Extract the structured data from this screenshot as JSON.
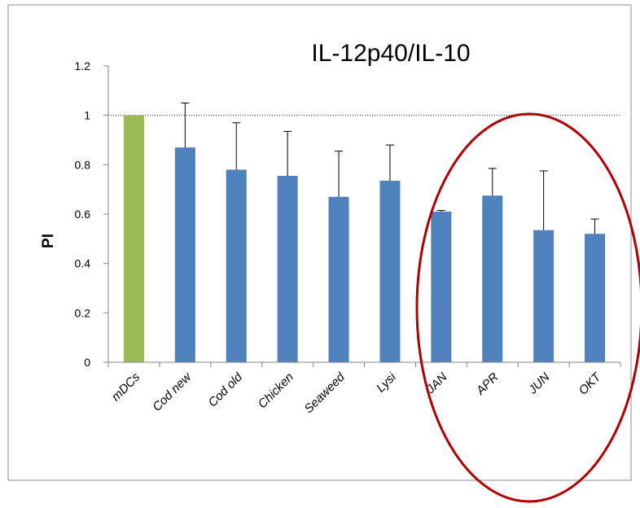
{
  "chart_data": {
    "type": "bar",
    "title": "IL-12p40/IL-10",
    "xlabel": "",
    "ylabel": "PI",
    "ylim": [
      0,
      1.2
    ],
    "yticks": [
      "0",
      "0.2",
      "0.4",
      "0.6",
      "0.8",
      "1",
      "1.2"
    ],
    "reference_line": 1,
    "grid": false,
    "categories": [
      "mDCs",
      "Cod new",
      "Cod old",
      "Chicken",
      "Seaweed",
      "Lysi",
      "JAN",
      "APR",
      "JUN",
      "OKT"
    ],
    "values": [
      1.0,
      0.87,
      0.78,
      0.755,
      0.67,
      0.735,
      0.61,
      0.675,
      0.535,
      0.52
    ],
    "errors": [
      0.0,
      0.18,
      0.19,
      0.18,
      0.185,
      0.145,
      0.005,
      0.11,
      0.24,
      0.06
    ],
    "bar_colors": [
      "#9bbb59",
      "#4f81bd",
      "#4f81bd",
      "#4f81bd",
      "#4f81bd",
      "#4f81bd",
      "#4f81bd",
      "#4f81bd",
      "#4f81bd",
      "#4f81bd"
    ],
    "highlight": {
      "shape": "ellipse",
      "color": "#b00000",
      "categories": [
        "JAN",
        "APR",
        "JUN",
        "OKT"
      ]
    }
  }
}
